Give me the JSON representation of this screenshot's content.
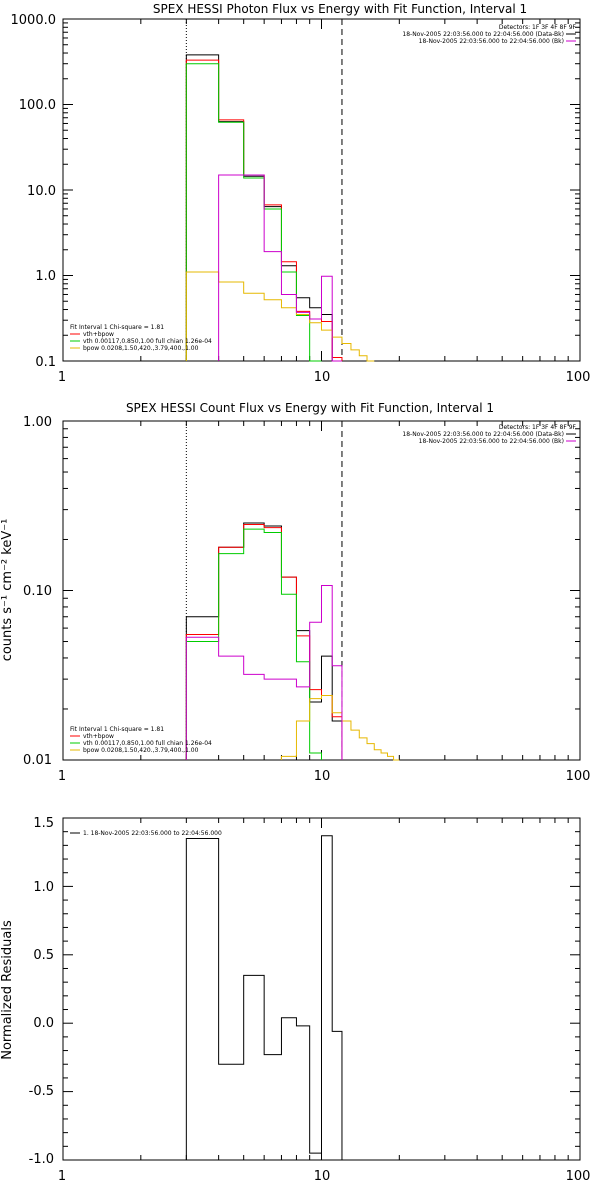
{
  "colors": {
    "data": "#000000",
    "total": "#ff0000",
    "vth": "#00cc00",
    "bpow": "#e6b800",
    "background": "#cc00cc",
    "axes": "#000000"
  },
  "chart_data": [
    {
      "type": "line",
      "title": "SPEX HESSI Photon Flux vs Energy with Fit Function, Interval 1",
      "xlabel": "",
      "ylabel": "",
      "xscale": "log",
      "yscale": "log",
      "xlim": [
        1,
        100
      ],
      "ylim": [
        0.1,
        1000
      ],
      "xticks": [
        "1",
        "10",
        "100"
      ],
      "yticks": [
        "1000.0",
        "100.0",
        "10.0",
        "1.0",
        "0.1"
      ],
      "fit_range": [
        3,
        12
      ],
      "legend_top": [
        "Detectors: 1F 3F 4F 8F 9F",
        "18-Nov-2005 22:03:56.000 to 22:04:56.000 (Data-Bk)",
        "18-Nov-2005 22:03:56.000 to 22:04:56.000 (Bk)"
      ],
      "legend_bottom": [
        "Fit Interval 1   Chi-square = 1.81",
        "vth+bpow",
        "vth 0.00117,0.850,1.00  full chian 1.26e-04",
        "bpow 0.0208,1.50,420.,3.79,400.,1.00"
      ],
      "energy_edges": [
        3,
        4,
        5,
        6,
        7,
        8,
        9,
        10,
        11,
        12,
        13,
        14,
        15,
        16
      ],
      "series": [
        {
          "name": "18-Nov-2005 22:03:56.000 to 22:04:56.000 (Data-Bk)",
          "values": [
            380,
            63,
            14.5,
            6.4,
            1.3,
            0.55,
            0.42,
            0.35,
            0.08,
            null,
            null,
            null,
            null
          ]
        },
        {
          "name": "vth+bpow",
          "values": [
            330,
            66,
            15,
            6.7,
            1.45,
            0.38,
            0.31,
            0.29,
            0.11,
            null,
            null,
            null,
            null
          ]
        },
        {
          "name": "vth 0.00117,0.850,1.00  full chian 1.26e-04",
          "values": [
            300,
            62,
            13.8,
            6.0,
            1.1,
            0.34,
            0.05,
            null,
            null,
            null,
            null,
            null,
            null
          ]
        },
        {
          "name": "bpow 0.0208,1.50,420.,3.79,400.,1.00",
          "values": [
            1.1,
            0.84,
            0.62,
            0.52,
            0.42,
            0.35,
            0.28,
            0.23,
            0.19,
            0.16,
            0.135,
            0.115,
            0.1
          ]
        },
        {
          "name": "18-Nov-2005 22:03:56.000 to 22:04:56.000 (Bk)",
          "values": [
            null,
            15,
            15,
            1.9,
            0.6,
            0.37,
            0.31,
            0.98,
            0.05,
            null,
            null,
            null,
            null
          ]
        }
      ]
    },
    {
      "type": "line",
      "title": "SPEX HESSI Count Flux vs Energy with Fit Function, Interval 1",
      "xlabel": "",
      "ylabel": "counts s⁻¹ cm⁻² keV⁻¹",
      "xscale": "log",
      "yscale": "log",
      "xlim": [
        1,
        100
      ],
      "ylim": [
        0.01,
        1
      ],
      "xticks": [
        "1",
        "10",
        "100"
      ],
      "yticks": [
        "1.00",
        "0.10",
        "0.01"
      ],
      "fit_range": [
        3,
        12
      ],
      "legend_top": [
        "Detectors: 1F 3F 4F 8F 9F",
        "18-Nov-2005 22:03:56.000 to 22:04:56.000 (Data-Bk)",
        "18-Nov-2005 22:03:56.000 to 22:04:56.000 (Bk)"
      ],
      "legend_bottom": [
        "Fit Interval 1   Chi-square = 1.81",
        "vth+bpow",
        "vth 0.00117,0.850,1.00  full chian 1.26e-04",
        "bpow 0.0208,1.50,420.,3.79,400.,1.00"
      ],
      "energy_edges": [
        3,
        4,
        5,
        6,
        7,
        8,
        9,
        10,
        11,
        12,
        13,
        14,
        15,
        16,
        17,
        18,
        19,
        20
      ],
      "series": [
        {
          "name": "18-Nov-2005 22:03:56.000 to 22:04:56.000 (Data-Bk)",
          "values": [
            0.07,
            0.18,
            0.25,
            0.24,
            0.12,
            0.058,
            0.022,
            0.041,
            0.017,
            null,
            null,
            null,
            null,
            null,
            null,
            null,
            null
          ]
        },
        {
          "name": "vth+bpow",
          "values": [
            0.055,
            0.18,
            0.245,
            0.235,
            0.12,
            0.054,
            0.026,
            0.024,
            0.018,
            null,
            null,
            null,
            null,
            null,
            null,
            null,
            null
          ]
        },
        {
          "name": "vth 0.00117,0.850,1.00  full chian 1.26e-04",
          "values": [
            0.05,
            0.165,
            0.23,
            0.22,
            0.095,
            0.038,
            0.011,
            null,
            null,
            null,
            null,
            null,
            null,
            null,
            null,
            null,
            null
          ]
        },
        {
          "name": "bpow 0.0208,1.50,420.,3.79,400.,1.00",
          "values": [
            null,
            null,
            null,
            null,
            0.0105,
            0.017,
            0.023,
            0.024,
            0.019,
            0.017,
            0.015,
            0.0135,
            0.0125,
            0.0115,
            0.011,
            0.0105,
            0.01
          ]
        },
        {
          "name": "18-Nov-2005 22:03:56.000 to 22:04:56.000 (Bk)",
          "values": [
            0.053,
            0.041,
            0.032,
            0.03,
            0.03,
            0.027,
            0.065,
            0.107,
            0.036,
            null,
            null,
            null,
            null,
            null,
            null,
            null,
            null
          ]
        }
      ]
    },
    {
      "type": "line",
      "title": "",
      "xlabel": "",
      "ylabel": "Normalized Residuals",
      "xscale": "log",
      "yscale": "linear",
      "xlim": [
        1,
        100
      ],
      "ylim": [
        -1.0,
        1.5
      ],
      "xticks": [
        "1",
        "10",
        "100"
      ],
      "yticks": [
        "1.5",
        "1.0",
        "0.5",
        "0.0",
        "-0.5",
        "-1.0"
      ],
      "legend": [
        "1. 18-Nov-2005 22:03:56.000 to 22:04:56.000"
      ],
      "energy_edges": [
        3,
        4,
        5,
        6,
        7,
        8,
        9,
        10,
        11,
        12
      ],
      "series": [
        {
          "name": "1. 18-Nov-2005 22:03:56.000 to 22:04:56.000",
          "values": [
            1.35,
            -0.3,
            0.35,
            -0.23,
            0.04,
            -0.02,
            -0.95,
            1.37,
            -0.06
          ]
        }
      ]
    }
  ]
}
